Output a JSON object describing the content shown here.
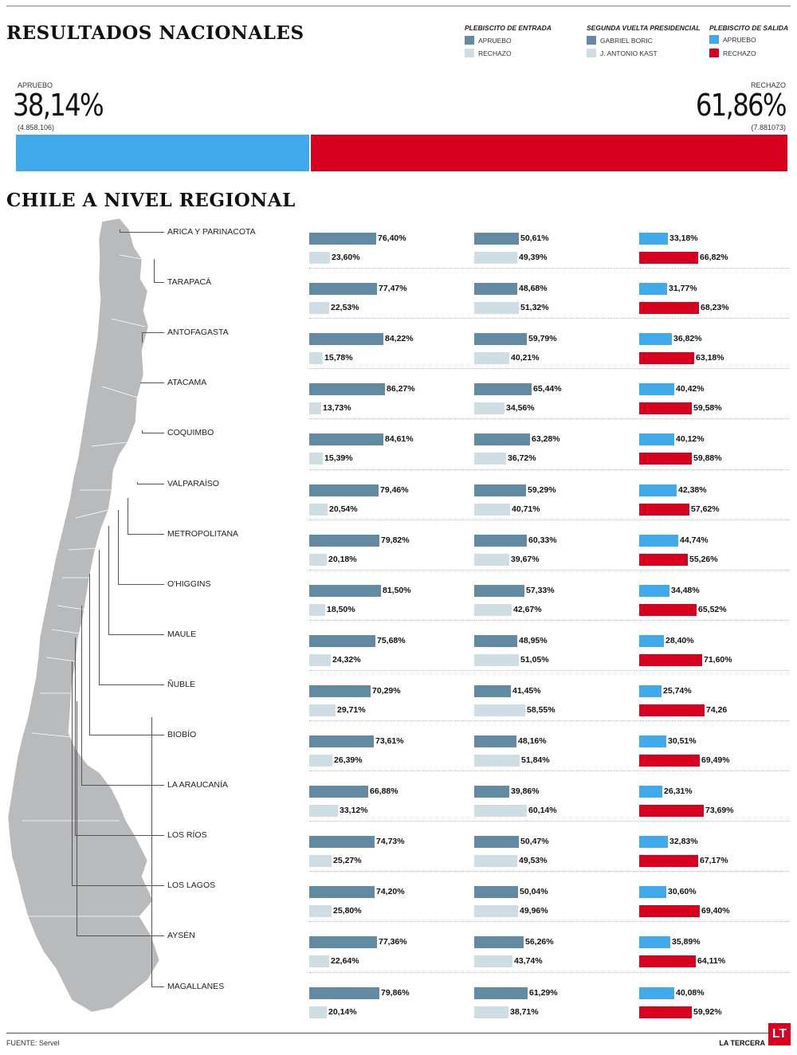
{
  "header": {
    "title": "RESULTADOS NACIONALES",
    "regional_title": "CHILE A NIVEL REGIONAL"
  },
  "colors": {
    "entrada_apruebo": "#628ba3",
    "entrada_rechazo": "#cfdde4",
    "boric": "#628ba3",
    "kast": "#cfdde4",
    "salida_apruebo": "#41aaea",
    "salida_rechazo": "#d7001e",
    "map": "#b9babc"
  },
  "legend": {
    "groups": [
      {
        "title": "PLEBISCITO DE ENTRADA",
        "items": [
          {
            "label": "APRUEBO",
            "color": "#628ba3"
          },
          {
            "label": "RECHAZO",
            "color": "#cfdde4"
          }
        ]
      },
      {
        "title": "SEGUNDA VUELTA PRESIDENCIAL",
        "items": [
          {
            "label": "GABRIEL BORIC",
            "color": "#628ba3"
          },
          {
            "label": "J. ANTONIO KAST",
            "color": "#cfdde4"
          }
        ]
      },
      {
        "title": "PLEBISCITO DE SALIDA",
        "items": [
          {
            "label": "APRUEBO",
            "color": "#41aaea"
          },
          {
            "label": "RECHAZO",
            "color": "#d7001e"
          }
        ]
      }
    ]
  },
  "national": {
    "apruebo_label": "APRUEBO",
    "apruebo_pct_text": "38,14%",
    "apruebo_votes": "(4.858.106)",
    "apruebo_pct": 38.14,
    "rechazo_label": "RECHAZO",
    "rechazo_pct_text": "61,86%",
    "rechazo_votes": "(7.881073)",
    "rechazo_pct": 61.86
  },
  "chart_data": {
    "type": "bar",
    "title": "CHILE A NIVEL REGIONAL",
    "x_range": [
      0,
      100
    ],
    "series_groups": [
      "PLEBISCITO DE ENTRADA",
      "SEGUNDA VUELTA PRESIDENCIAL",
      "PLEBISCITO DE SALIDA"
    ],
    "regions": [
      {
        "name": "ARICA Y PARINACOTA",
        "entrada": [
          76.4,
          23.6
        ],
        "entrada_text": [
          "76,40%",
          "23,60%"
        ],
        "segunda": [
          50.61,
          49.39
        ],
        "segunda_text": [
          "50,61%",
          "49,39%"
        ],
        "salida": [
          33.18,
          66.82
        ],
        "salida_text": [
          "33,18%",
          "66,82%"
        ]
      },
      {
        "name": "TARAPACÁ",
        "entrada": [
          77.47,
          22.53
        ],
        "entrada_text": [
          "77,47%",
          "22,53%"
        ],
        "segunda": [
          48.68,
          51.32
        ],
        "segunda_text": [
          "48,68%",
          "51,32%"
        ],
        "salida": [
          31.77,
          68.23
        ],
        "salida_text": [
          "31,77%",
          "68,23%"
        ]
      },
      {
        "name": "ANTOFAGASTA",
        "entrada": [
          84.22,
          15.78
        ],
        "entrada_text": [
          "84,22%",
          "15,78%"
        ],
        "segunda": [
          59.79,
          40.21
        ],
        "segunda_text": [
          "59,79%",
          "40,21%"
        ],
        "salida": [
          36.82,
          63.18
        ],
        "salida_text": [
          "36,82%",
          "63,18%"
        ]
      },
      {
        "name": "ATACAMA",
        "entrada": [
          86.27,
          13.73
        ],
        "entrada_text": [
          "86,27%",
          "13,73%"
        ],
        "segunda": [
          65.44,
          34.56
        ],
        "segunda_text": [
          "65,44%",
          "34,56%"
        ],
        "salida": [
          40.42,
          59.58
        ],
        "salida_text": [
          "40,42%",
          "59,58%"
        ]
      },
      {
        "name": "COQUIMBO",
        "entrada": [
          84.61,
          15.39
        ],
        "entrada_text": [
          "84,61%",
          "15,39%"
        ],
        "segunda": [
          63.28,
          36.72
        ],
        "segunda_text": [
          "63,28%",
          "36,72%"
        ],
        "salida": [
          40.12,
          59.88
        ],
        "salida_text": [
          "40,12%",
          "59,88%"
        ]
      },
      {
        "name": "VALPARAÍSO",
        "entrada": [
          79.46,
          20.54
        ],
        "entrada_text": [
          "79,46%",
          "20,54%"
        ],
        "segunda": [
          59.29,
          40.71
        ],
        "segunda_text": [
          "59,29%",
          "40,71%"
        ],
        "salida": [
          42.38,
          57.62
        ],
        "salida_text": [
          "42,38%",
          "57,62%"
        ]
      },
      {
        "name": "METROPOLITANA",
        "entrada": [
          79.82,
          20.18
        ],
        "entrada_text": [
          "79,82%",
          "20,18%"
        ],
        "segunda": [
          60.33,
          39.67
        ],
        "segunda_text": [
          "60,33%",
          "39,67%"
        ],
        "salida": [
          44.74,
          55.26
        ],
        "salida_text": [
          "44,74%",
          "55,26%"
        ]
      },
      {
        "name": "O'HIGGINS",
        "entrada": [
          81.5,
          18.5
        ],
        "entrada_text": [
          "81,50%",
          "18,50%"
        ],
        "segunda": [
          57.33,
          42.67
        ],
        "segunda_text": [
          "57,33%",
          "42,67%"
        ],
        "salida": [
          34.48,
          65.52
        ],
        "salida_text": [
          "34,48%",
          "65,52%"
        ]
      },
      {
        "name": "MAULE",
        "entrada": [
          75.68,
          24.32
        ],
        "entrada_text": [
          "75,68%",
          "24,32%"
        ],
        "segunda": [
          48.95,
          51.05
        ],
        "segunda_text": [
          "48,95%",
          "51,05%"
        ],
        "salida": [
          28.4,
          71.6
        ],
        "salida_text": [
          "28,40%",
          "71,60%"
        ]
      },
      {
        "name": "ÑUBLE",
        "entrada": [
          70.29,
          29.71
        ],
        "entrada_text": [
          "70,29%",
          "29,71%"
        ],
        "segunda": [
          41.45,
          58.55
        ],
        "segunda_text": [
          "41,45%",
          "58,55%"
        ],
        "salida": [
          25.74,
          74.26
        ],
        "salida_text": [
          "25,74%",
          "74,26"
        ]
      },
      {
        "name": "BIOBÍO",
        "entrada": [
          73.61,
          26.39
        ],
        "entrada_text": [
          "73,61%",
          "26,39%"
        ],
        "segunda": [
          48.16,
          51.84
        ],
        "segunda_text": [
          "48,16%",
          "51,84%"
        ],
        "salida": [
          30.51,
          69.49
        ],
        "salida_text": [
          "30,51%",
          "69,49%"
        ]
      },
      {
        "name": "LA ARAUCANÍA",
        "entrada": [
          66.88,
          33.12
        ],
        "entrada_text": [
          "66,88%",
          "33,12%"
        ],
        "segunda": [
          39.86,
          60.14
        ],
        "segunda_text": [
          "39,86%",
          "60,14%"
        ],
        "salida": [
          26.31,
          73.69
        ],
        "salida_text": [
          "26,31%",
          "73,69%"
        ]
      },
      {
        "name": "LOS RÍOS",
        "entrada": [
          74.73,
          25.27
        ],
        "entrada_text": [
          "74,73%",
          "25,27%"
        ],
        "segunda": [
          50.47,
          49.53
        ],
        "segunda_text": [
          "50,47%",
          "49,53%"
        ],
        "salida": [
          32.83,
          67.17
        ],
        "salida_text": [
          "32,83%",
          "67,17%"
        ]
      },
      {
        "name": "LOS LAGOS",
        "entrada": [
          74.2,
          25.8
        ],
        "entrada_text": [
          "74,20%",
          "25,80%"
        ],
        "segunda": [
          50.04,
          49.96
        ],
        "segunda_text": [
          "50,04%",
          "49,96%"
        ],
        "salida": [
          30.6,
          69.4
        ],
        "salida_text": [
          "30,60%",
          "69,40%"
        ]
      },
      {
        "name": "AYSÉN",
        "entrada": [
          77.36,
          22.64
        ],
        "entrada_text": [
          "77,36%",
          "22,64%"
        ],
        "segunda": [
          56.26,
          43.74
        ],
        "segunda_text": [
          "56,26%",
          "43,74%"
        ],
        "salida": [
          35.89,
          64.11
        ],
        "salida_text": [
          "35,89%",
          "64,11%"
        ]
      },
      {
        "name": "MAGALLANES",
        "entrada": [
          79.86,
          20.14
        ],
        "entrada_text": [
          "79,86%",
          "20,14%"
        ],
        "segunda": [
          61.29,
          38.71
        ],
        "segunda_text": [
          "61,29%",
          "38,71%"
        ],
        "salida": [
          40.08,
          59.92
        ],
        "salida_text": [
          "40,08%",
          "59,92%"
        ]
      }
    ]
  },
  "footer": {
    "source": "FUENTE: Servel",
    "brand": "LA TERCERA",
    "logo": "LT"
  }
}
